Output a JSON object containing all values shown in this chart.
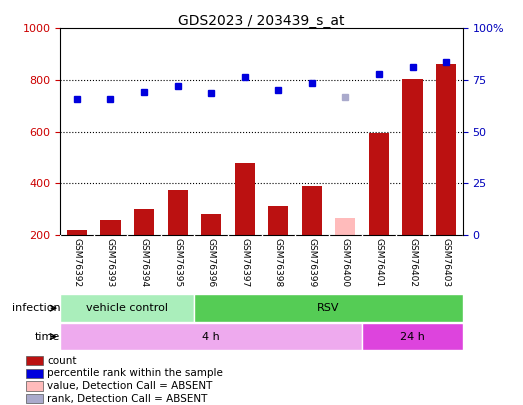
{
  "title": "GDS2023 / 203439_s_at",
  "samples": [
    "GSM76392",
    "GSM76393",
    "GSM76394",
    "GSM76395",
    "GSM76396",
    "GSM76397",
    "GSM76398",
    "GSM76399",
    "GSM76400",
    "GSM76401",
    "GSM76402",
    "GSM76403"
  ],
  "bar_values": [
    220,
    258,
    300,
    375,
    280,
    480,
    310,
    390,
    265,
    595,
    805,
    860
  ],
  "bar_colors": [
    "#bb1111",
    "#bb1111",
    "#bb1111",
    "#bb1111",
    "#bb1111",
    "#bb1111",
    "#bb1111",
    "#bb1111",
    "#ffbbbb",
    "#bb1111",
    "#bb1111",
    "#bb1111"
  ],
  "rank_values": [
    725,
    728,
    752,
    778,
    748,
    812,
    762,
    788,
    736,
    822,
    852,
    868
  ],
  "rank_colors": [
    "#0000dd",
    "#0000dd",
    "#0000dd",
    "#0000dd",
    "#0000dd",
    "#0000dd",
    "#0000dd",
    "#0000dd",
    "#aaaacc",
    "#0000dd",
    "#0000dd",
    "#0000dd"
  ],
  "ylim_left": [
    200,
    1000
  ],
  "yticks_left": [
    200,
    400,
    600,
    800,
    1000
  ],
  "ytick_labels_left": [
    "200",
    "400",
    "600",
    "800",
    "1000"
  ],
  "yticks_right": [
    0,
    25,
    50,
    75,
    100
  ],
  "ytick_labels_right": [
    "0",
    "25",
    "50",
    "75",
    "100%"
  ],
  "grid_lines": [
    400,
    600,
    800
  ],
  "infection_groups": [
    {
      "label": "vehicle control",
      "start": 0,
      "end": 3,
      "color": "#aaeebb"
    },
    {
      "label": "RSV",
      "start": 4,
      "end": 11,
      "color": "#55cc55"
    }
  ],
  "time_groups": [
    {
      "label": "4 h",
      "start": 0,
      "end": 8,
      "color": "#eeaaee"
    },
    {
      "label": "24 h",
      "start": 9,
      "end": 11,
      "color": "#dd44dd"
    }
  ],
  "legend_items": [
    {
      "color": "#bb1111",
      "label": "count",
      "marker": "s"
    },
    {
      "color": "#0000dd",
      "label": "percentile rank within the sample",
      "marker": "s"
    },
    {
      "color": "#ffbbbb",
      "label": "value, Detection Call = ABSENT",
      "marker": "s"
    },
    {
      "color": "#aaaacc",
      "label": "rank, Detection Call = ABSENT",
      "marker": "s"
    }
  ],
  "infection_label": "infection",
  "time_label": "time",
  "sample_bg_color": "#cccccc",
  "plot_bg": "#ffffff",
  "left_tick_color": "#cc0000",
  "right_tick_color": "#0000bb",
  "border_color": "#888888"
}
